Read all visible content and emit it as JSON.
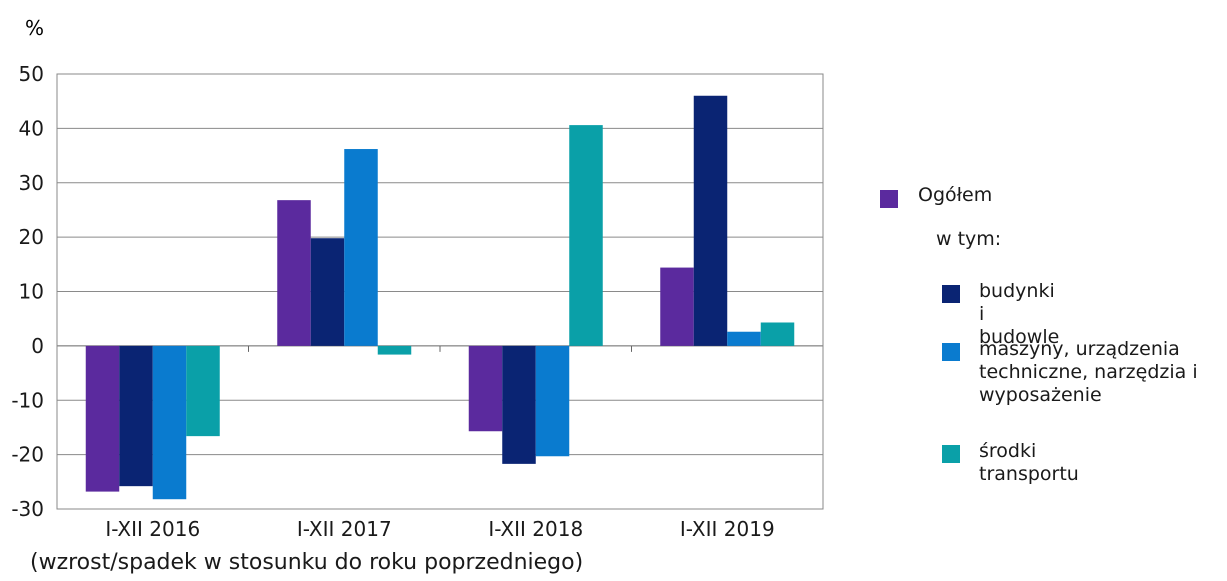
{
  "chart_data": {
    "type": "bar",
    "unit_label": "%",
    "categories": [
      "I-XII 2016",
      "I-XII 2017",
      "I-XII 2018",
      "I-XII 2019"
    ],
    "series": [
      {
        "name": "Ogółem",
        "color": "#5b2a9e",
        "values": [
          -26.8,
          26.8,
          -15.7,
          14.4
        ]
      },
      {
        "name": "budynki i budowle",
        "color": "#0a2473",
        "values": [
          -25.8,
          19.8,
          -21.7,
          46.0
        ]
      },
      {
        "name": "maszyny, urządzenia techniczne, narzędzia i wyposażenie",
        "color": "#0a7bcf",
        "values": [
          -28.2,
          36.2,
          -20.3,
          2.6
        ]
      },
      {
        "name": "środki transportu",
        "color": "#0aa0a8",
        "values": [
          -16.6,
          -1.6,
          40.6,
          4.3
        ]
      }
    ],
    "ylim": [
      -30,
      50
    ],
    "yticks": [
      "50",
      "40",
      "30",
      "20",
      "10",
      "0",
      "-10",
      "-20",
      "-30"
    ],
    "grid": true,
    "legend_position": "right",
    "legend_subheading": "w tym:",
    "caption": "(wzrost/spadek w stosunku do roku poprzedniego)"
  }
}
